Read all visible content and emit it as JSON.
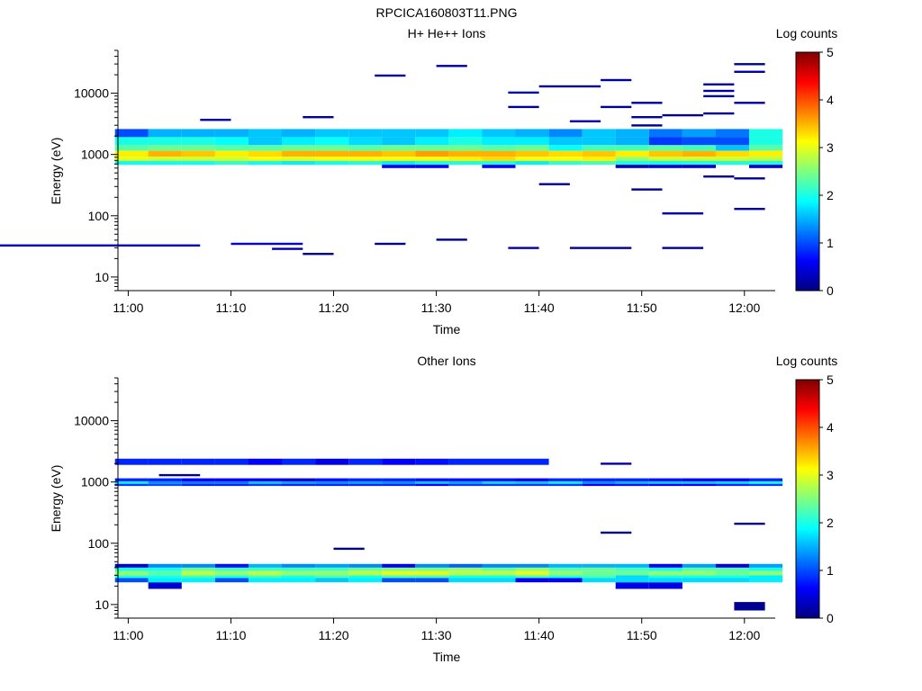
{
  "figure_title": "RPCICA160803T11.PNG",
  "colormap": [
    "#00007f",
    "#0000ff",
    "#007fff",
    "#00ffff",
    "#7fff7f",
    "#ffff00",
    "#ff7f00",
    "#ff0000",
    "#7f0000"
  ],
  "chart_data": [
    {
      "type": "heatmap",
      "title": "H+ He++ Ions",
      "xlabel": "Time",
      "ylabel": "Energy (eV)",
      "xlim": [
        "10:59",
        "12:03"
      ],
      "ylim": [
        6,
        50000
      ],
      "yscale": "log",
      "x_ticks": [
        "11:00",
        "11:10",
        "11:20",
        "11:30",
        "11:40",
        "11:50",
        "12:00"
      ],
      "y_ticks": [
        10,
        100,
        1000,
        10000
      ],
      "y_tick_labels": [
        "10",
        "100",
        "1000",
        "10000"
      ],
      "colorbar": {
        "label": "Log counts",
        "min": 0,
        "max": 5,
        "ticks": [
          "0",
          "1",
          "2",
          "3",
          "4",
          "5"
        ]
      },
      "time_bins": [
        "11:00:20",
        "11:03:35",
        "11:06:50",
        "11:10:05",
        "11:13:20",
        "11:16:35",
        "11:19:50",
        "11:23:05",
        "11:26:20",
        "11:29:35",
        "11:32:50",
        "11:36:05",
        "11:39:20",
        "11:42:35",
        "11:45:50",
        "11:49:05",
        "11:52:20",
        "11:55:35",
        "11:58:50",
        "12:02:05"
      ],
      "energy_bins": [
        {
          "e_lo": 1920,
          "e_hi": 2600,
          "values": [
            1.0,
            1.5,
            1.5,
            1.5,
            1.6,
            1.5,
            1.6,
            1.6,
            1.6,
            1.6,
            1.8,
            1.6,
            1.5,
            1.3,
            1.6,
            1.5,
            1.2,
            1.4,
            1.2,
            2.0
          ]
        },
        {
          "e_lo": 1420,
          "e_hi": 1920,
          "values": [
            2.0,
            2.0,
            2.0,
            1.9,
            1.6,
            1.8,
            1.9,
            1.7,
            1.6,
            1.8,
            2.0,
            1.8,
            1.8,
            1.6,
            1.6,
            1.5,
            0.9,
            1.0,
            1.0,
            2.0
          ]
        },
        {
          "e_lo": 1150,
          "e_hi": 1420,
          "values": [
            2.3,
            2.4,
            2.4,
            2.3,
            2.3,
            2.4,
            2.4,
            2.3,
            2.4,
            2.4,
            2.4,
            2.3,
            2.4,
            1.9,
            2.2,
            2.2,
            2.3,
            2.2,
            1.6,
            2.3
          ]
        },
        {
          "e_lo": 920,
          "e_hi": 1150,
          "values": [
            3.2,
            3.5,
            3.4,
            3.2,
            3.3,
            3.5,
            3.5,
            3.5,
            3.4,
            3.6,
            3.5,
            3.5,
            3.4,
            3.3,
            3.4,
            3.2,
            3.4,
            3.5,
            3.3,
            3.2
          ]
        },
        {
          "e_lo": 780,
          "e_hi": 920,
          "values": [
            3.0,
            2.9,
            2.9,
            2.9,
            3.1,
            3.0,
            3.1,
            3.1,
            3.1,
            3.1,
            3.2,
            3.3,
            3.1,
            3.1,
            3.2,
            2.6,
            2.9,
            2.9,
            2.9,
            2.8
          ]
        },
        {
          "e_lo": 680,
          "e_hi": 780,
          "values": [
            1.9,
            1.9,
            1.9,
            2.1,
            1.9,
            1.8,
            1.9,
            2.0,
            1.8,
            2.0,
            2.0,
            2.0,
            1.8,
            2.1,
            2.2,
            2.0,
            1.9,
            2.0,
            2.0,
            2.0
          ]
        },
        {
          "e_lo": 600,
          "e_hi": 680,
          "values": [
            null,
            null,
            null,
            null,
            null,
            null,
            null,
            null,
            0.6,
            0.6,
            null,
            0.6,
            null,
            null,
            null,
            0.3,
            0.4,
            0.4,
            null,
            0.4
          ]
        }
      ],
      "sparse_counts": [
        {
          "t0": "10:45",
          "t1": "11:07",
          "e": 33,
          "v": 0.3
        },
        {
          "t0": "11:10",
          "t1": "11:17",
          "e": 35,
          "v": 0.5
        },
        {
          "t0": "11:14",
          "t1": "11:17",
          "e": 29,
          "v": 0.2
        },
        {
          "t0": "11:17",
          "t1": "11:20",
          "e": 24,
          "v": 0.1
        },
        {
          "t0": "11:24",
          "t1": "11:27",
          "e": 35,
          "v": 0.1
        },
        {
          "t0": "11:30",
          "t1": "11:33",
          "e": 41,
          "v": 0.1
        },
        {
          "t0": "11:37",
          "t1": "11:40",
          "e": 30,
          "v": 0.2
        },
        {
          "t0": "11:43",
          "t1": "11:49",
          "e": 30,
          "v": 0.1
        },
        {
          "t0": "11:52",
          "t1": "11:56",
          "e": 30,
          "v": 0.1
        },
        {
          "t0": "11:07",
          "t1": "11:10",
          "e": 3700,
          "v": 0.2
        },
        {
          "t0": "11:17",
          "t1": "11:20",
          "e": 4100,
          "v": 0.2
        },
        {
          "t0": "11:24",
          "t1": "11:27",
          "e": 19500,
          "v": 0.2
        },
        {
          "t0": "11:30",
          "t1": "11:33",
          "e": 28000,
          "v": 0.2
        },
        {
          "t0": "11:37",
          "t1": "11:40",
          "e": 10300,
          "v": 0.2
        },
        {
          "t0": "11:37",
          "t1": "11:40",
          "e": 6000,
          "v": 0.1
        },
        {
          "t0": "11:40",
          "t1": "11:46",
          "e": 13000,
          "v": 0.2
        },
        {
          "t0": "11:40",
          "t1": "11:43",
          "e": 330,
          "v": 0.1
        },
        {
          "t0": "11:43",
          "t1": "11:46",
          "e": 3500,
          "v": 0.2
        },
        {
          "t0": "11:46",
          "t1": "11:49",
          "e": 16500,
          "v": 0.2
        },
        {
          "t0": "11:46",
          "t1": "11:49",
          "e": 6000,
          "v": 0.1
        },
        {
          "t0": "11:49",
          "t1": "11:52",
          "e": 7000,
          "v": 0.2
        },
        {
          "t0": "11:49",
          "t1": "11:52",
          "e": 4100,
          "v": 0.2
        },
        {
          "t0": "11:49",
          "t1": "11:52",
          "e": 3000,
          "v": 0.1
        },
        {
          "t0": "11:49",
          "t1": "11:52",
          "e": 270,
          "v": 0.1
        },
        {
          "t0": "11:52",
          "t1": "11:56",
          "e": 4400,
          "v": 0.1
        },
        {
          "t0": "11:52",
          "t1": "11:56",
          "e": 110,
          "v": 0.2
        },
        {
          "t0": "11:56",
          "t1": "11:59",
          "e": 14000,
          "v": 0.2
        },
        {
          "t0": "11:56",
          "t1": "11:59",
          "e": 11000,
          "v": 0.2
        },
        {
          "t0": "11:56",
          "t1": "11:59",
          "e": 9000,
          "v": 0.1
        },
        {
          "t0": "11:56",
          "t1": "11:59",
          "e": 4700,
          "v": 0.2
        },
        {
          "t0": "11:56",
          "t1": "11:59",
          "e": 440,
          "v": 0.1
        },
        {
          "t0": "11:59",
          "t1": "12:02",
          "e": 30000,
          "v": 0.1
        },
        {
          "t0": "11:59",
          "t1": "12:02",
          "e": 22500,
          "v": 0.3
        },
        {
          "t0": "11:59",
          "t1": "12:02",
          "e": 7000,
          "v": 0.2
        },
        {
          "t0": "11:59",
          "t1": "12:02",
          "e": 410,
          "v": 0.2
        },
        {
          "t0": "11:59",
          "t1": "12:02",
          "e": 130,
          "v": 0.2
        }
      ]
    },
    {
      "type": "heatmap",
      "title": "Other Ions",
      "xlabel": "Time",
      "ylabel": "Energy (eV)",
      "xlim": [
        "10:59",
        "12:03"
      ],
      "ylim": [
        6,
        50000
      ],
      "yscale": "log",
      "x_ticks": [
        "11:00",
        "11:10",
        "11:20",
        "11:30",
        "11:40",
        "11:50",
        "12:00"
      ],
      "y_ticks": [
        10,
        100,
        1000,
        10000
      ],
      "y_tick_labels": [
        "10",
        "100",
        "1000",
        "10000"
      ],
      "colorbar": {
        "label": "Log counts",
        "min": 0,
        "max": 5,
        "ticks": [
          "0",
          "1",
          "2",
          "3",
          "4",
          "5"
        ]
      },
      "time_bins": [
        "11:00:20",
        "11:03:35",
        "11:06:50",
        "11:10:05",
        "11:13:20",
        "11:16:35",
        "11:19:50",
        "11:23:05",
        "11:26:20",
        "11:29:35",
        "11:32:50",
        "11:36:05",
        "11:39:20",
        "11:42:35",
        "11:45:50",
        "11:49:05",
        "11:52:20",
        "11:55:35",
        "11:58:50",
        "12:02:05"
      ],
      "energy_bins": [
        {
          "e_lo": 1900,
          "e_hi": 2400,
          "values": [
            0.8,
            0.8,
            0.8,
            0.8,
            0.6,
            0.8,
            0.5,
            0.8,
            0.6,
            0.7,
            0.8,
            0.8,
            0.8,
            null,
            null,
            null,
            null,
            null,
            null,
            null
          ]
        },
        {
          "e_lo": 1020,
          "e_hi": 1150,
          "values": [
            0.8,
            0.8,
            0.6,
            0.6,
            0.6,
            0.4,
            0.7,
            0.8,
            0.8,
            0.7,
            0.7,
            0.7,
            0.6,
            0.8,
            0.8,
            0.8,
            0.7,
            0.6,
            0.6,
            0.8
          ]
        },
        {
          "e_lo": 930,
          "e_hi": 1020,
          "values": [
            1.8,
            1.3,
            1.2,
            1.2,
            1.6,
            1.4,
            1.3,
            1.4,
            1.3,
            1.6,
            1.4,
            1.7,
            1.6,
            1.8,
            1.3,
            1.5,
            1.6,
            1.6,
            1.7,
            1.9
          ]
        },
        {
          "e_lo": 860,
          "e_hi": 930,
          "values": [
            0.9,
            1.0,
            0.8,
            0.8,
            0.9,
            0.8,
            0.8,
            0.8,
            0.8,
            0.6,
            0.9,
            0.9,
            0.9,
            0.9,
            0.6,
            0.7,
            0.6,
            0.6,
            0.8,
            0.9
          ]
        },
        {
          "e_lo": 40,
          "e_hi": 46,
          "values": [
            0.4,
            1.3,
            1.3,
            0.7,
            1.5,
            1.3,
            1.4,
            1.3,
            0.6,
            1.3,
            1.1,
            1.3,
            1.3,
            1.5,
            1.5,
            1.5,
            0.6,
            1.4,
            0.5,
            1.4
          ]
        },
        {
          "e_lo": 35,
          "e_hi": 40,
          "values": [
            2.0,
            2.0,
            2.4,
            2.2,
            2.2,
            2.2,
            2.2,
            2.4,
            2.5,
            2.5,
            2.6,
            2.4,
            2.6,
            2.3,
            2.4,
            2.2,
            2.0,
            2.3,
            2.3,
            2.0
          ]
        },
        {
          "e_lo": 30,
          "e_hi": 35,
          "values": [
            2.6,
            2.3,
            2.8,
            2.6,
            2.8,
            2.6,
            2.6,
            2.8,
            3.0,
            3.0,
            2.8,
            2.8,
            3.0,
            2.6,
            2.4,
            2.4,
            2.6,
            2.6,
            2.4,
            2.6
          ]
        },
        {
          "e_lo": 27,
          "e_hi": 30,
          "values": [
            2.0,
            2.0,
            2.2,
            2.0,
            2.2,
            2.0,
            2.2,
            2.0,
            2.2,
            2.2,
            2.0,
            2.0,
            2.2,
            2.0,
            2.2,
            1.7,
            2.0,
            2.0,
            2.0,
            1.8
          ]
        },
        {
          "e_lo": 23,
          "e_hi": 27,
          "values": [
            1.0,
            1.8,
            1.8,
            1.0,
            1.8,
            1.8,
            1.6,
            1.8,
            1.0,
            1.0,
            1.7,
            1.7,
            0.6,
            0.6,
            1.7,
            1.7,
            1.7,
            1.7,
            1.7,
            1.8
          ]
        },
        {
          "e_lo": 18,
          "e_hi": 23,
          "values": [
            null,
            0.4,
            null,
            null,
            null,
            null,
            null,
            null,
            null,
            null,
            null,
            null,
            null,
            null,
            null,
            0.5,
            0.5,
            null,
            null,
            null
          ]
        }
      ],
      "sparse_counts": [
        {
          "t0": "11:03",
          "t1": "11:07",
          "e": 1300,
          "v": 0.1
        },
        {
          "t0": "11:20",
          "t1": "11:23",
          "e": 82,
          "v": 0.1
        },
        {
          "t0": "11:46",
          "t1": "11:49",
          "e": 2000,
          "v": 0.2
        },
        {
          "t0": "11:46",
          "t1": "11:49",
          "e": 150,
          "v": 0.1
        },
        {
          "t0": "11:59",
          "t1": "12:02",
          "e": 210,
          "v": 0.1
        },
        {
          "t0": "11:59",
          "t1": "12:02",
          "e": 8,
          "v": 0.1,
          "e_hi": 11
        }
      ]
    }
  ]
}
